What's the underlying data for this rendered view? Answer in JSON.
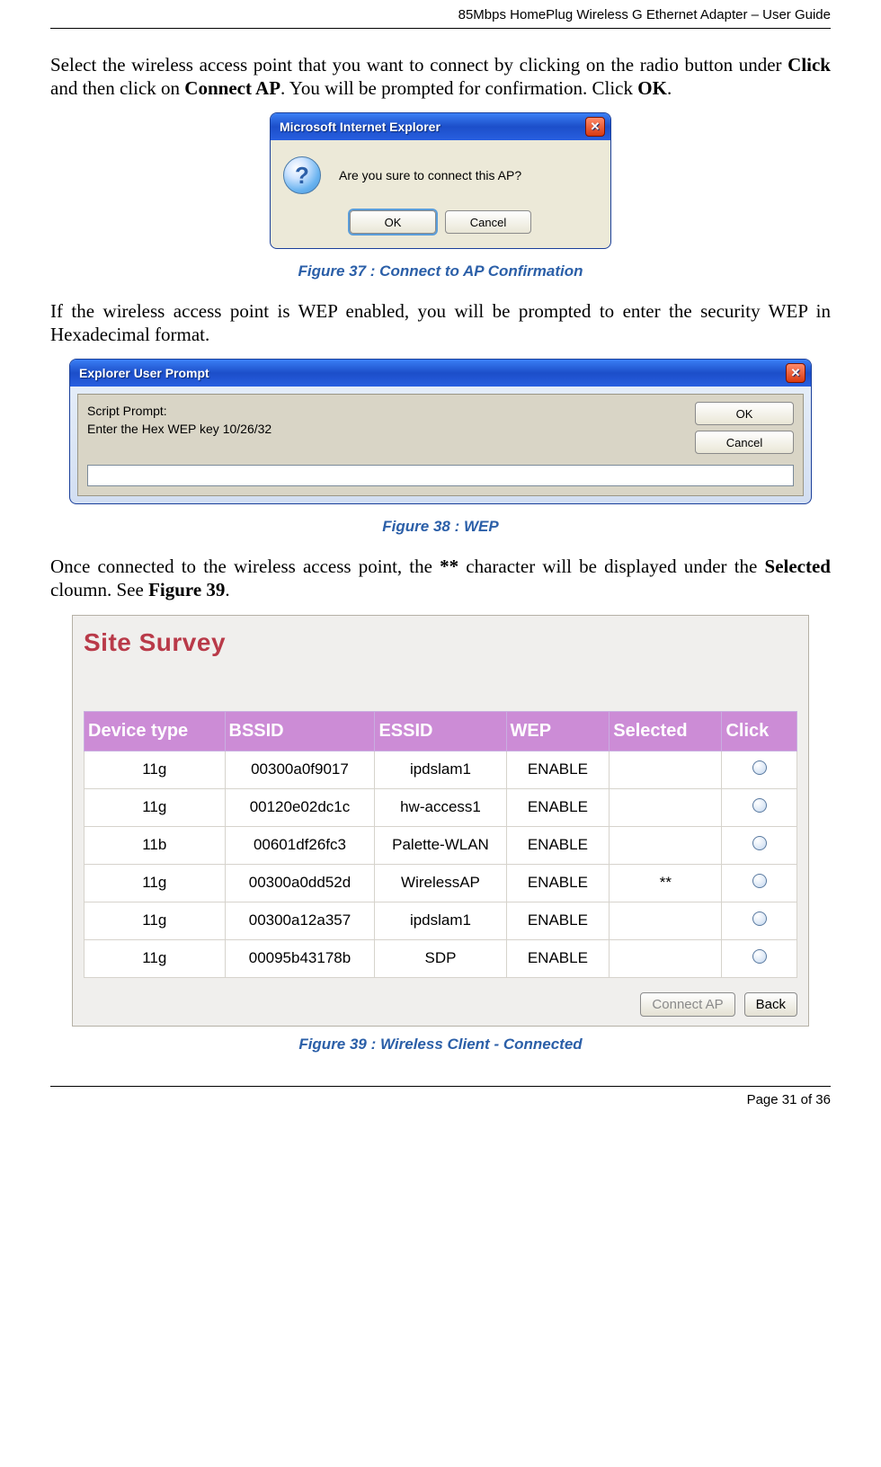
{
  "header": "85Mbps HomePlug Wireless G Ethernet Adapter – User Guide",
  "footer": "Page 31 of 36",
  "para1_pre": "Select the wireless access point that you want to connect by clicking on the radio button under ",
  "para1_b1": "Click",
  "para1_mid1": " and then click on ",
  "para1_b2": "Connect AP",
  "para1_mid2": ". You will be prompted for confirmation. Click ",
  "para1_b3": "OK",
  "para1_end": ".",
  "dlg1": {
    "title": "Microsoft Internet Explorer",
    "message": "Are you sure to connect this AP?",
    "ok": "OK",
    "cancel": "Cancel"
  },
  "caption1": "Figure 37 : Connect to AP Confirmation",
  "para2": "If the wireless access point is WEP enabled, you will be prompted to enter the security WEP in Hexadecimal format.",
  "dlg2": {
    "title": "Explorer User Prompt",
    "line1": "Script Prompt:",
    "line2": "Enter the Hex WEP key 10/26/32",
    "ok": "OK",
    "cancel": "Cancel"
  },
  "caption2": "Figure 38 : WEP",
  "para3_pre": "Once connected to the wireless access point, the ",
  "para3_b1": "**",
  "para3_mid1": " character will be displayed under the ",
  "para3_b2": "Selected",
  "para3_mid2": " cloumn. See ",
  "para3_b3": "Figure 39",
  "para3_end": ".",
  "survey": {
    "title": "Site Survey",
    "title_color": "#b93a49",
    "header_bg": "#cc8cd6",
    "cols": [
      "Device type",
      "BSSID",
      "ESSID",
      "WEP",
      "Selected",
      "Click"
    ],
    "col_widths": [
      "150",
      "160",
      "140",
      "110",
      "120",
      "80"
    ],
    "rows": [
      {
        "device": "11g",
        "bssid": "00300a0f9017",
        "essid": "ipdslam1",
        "wep": "ENABLE",
        "selected": ""
      },
      {
        "device": "11g",
        "bssid": "00120e02dc1c",
        "essid": "hw-access1",
        "wep": "ENABLE",
        "selected": ""
      },
      {
        "device": "11b",
        "bssid": "00601df26fc3",
        "essid": "Palette-WLAN",
        "wep": "ENABLE",
        "selected": ""
      },
      {
        "device": "11g",
        "bssid": "00300a0dd52d",
        "essid": "WirelessAP",
        "wep": "ENABLE",
        "selected": "**"
      },
      {
        "device": "11g",
        "bssid": "00300a12a357",
        "essid": "ipdslam1",
        "wep": "ENABLE",
        "selected": ""
      },
      {
        "device": "11g",
        "bssid": "00095b43178b",
        "essid": "SDP",
        "wep": "ENABLE",
        "selected": ""
      }
    ],
    "connect": "Connect AP",
    "back": "Back"
  },
  "caption3": "Figure 39 : Wireless Client - Connected"
}
